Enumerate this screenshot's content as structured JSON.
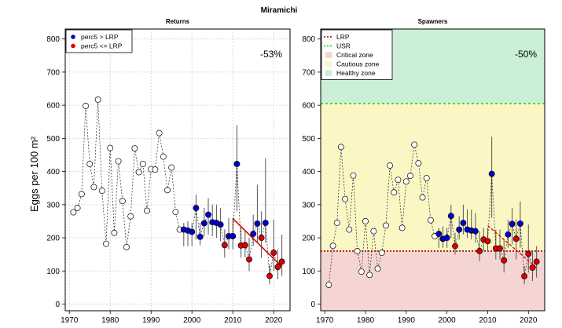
{
  "figure": {
    "title": "Miramichi",
    "ylabel": "Eggs per 100 m²"
  },
  "colors": {
    "above": "#0000cc",
    "below": "#dd0000",
    "open": "#ffffff",
    "critical": "#f5d5d2",
    "cautious": "#fbf7c4",
    "healthy": "#cbefd6",
    "lrp": "#990000",
    "usr": "#00cc00",
    "trend": "#dd0000",
    "errorbar": "#555555"
  },
  "chart_data": [
    {
      "type": "scatter",
      "title": "Returns",
      "xlim": [
        1969,
        2024
      ],
      "ylim": [
        -20,
        830
      ],
      "xticks": [
        1970,
        1980,
        1990,
        2000,
        2010,
        2020
      ],
      "yticks": [
        0,
        100,
        200,
        300,
        400,
        500,
        600,
        700,
        800
      ],
      "grid": true,
      "legend_position": "top-left",
      "legend": [
        {
          "label": "perc5 > LRP",
          "symbol": "blue-dot"
        },
        {
          "label": "perc5 <= LRP",
          "symbol": "red-dot"
        }
      ],
      "annotation": "-53%",
      "series": [
        {
          "x": [
            1971,
            1972,
            1973,
            1974,
            1975,
            1976,
            1977,
            1978,
            1979,
            1980,
            1981,
            1982,
            1983,
            1984,
            1985,
            1986,
            1987,
            1988,
            1989,
            1990,
            1991,
            1992,
            1993,
            1994,
            1995,
            1996,
            1997,
            1998,
            1999,
            2000,
            2001,
            2002,
            2003,
            2004,
            2005,
            2006,
            2007,
            2008,
            2009,
            2010,
            2011,
            2012,
            2013,
            2014,
            2015,
            2016,
            2017,
            2018,
            2019,
            2020,
            2021,
            2022
          ],
          "y": [
            277,
            290,
            332,
            598,
            423,
            353,
            617,
            342,
            182,
            471,
            215,
            431,
            311,
            172,
            265,
            470,
            398,
            423,
            282,
            407,
            406,
            516,
            445,
            344,
            412,
            278,
            225,
            225,
            222,
            218,
            290,
            203,
            244,
            270,
            247,
            245,
            240,
            178,
            205,
            205,
            423,
            177,
            178,
            135,
            212,
            243,
            200,
            245,
            85,
            155,
            112,
            128
          ],
          "status": [
            "open",
            "open",
            "open",
            "open",
            "open",
            "open",
            "open",
            "open",
            "open",
            "open",
            "open",
            "open",
            "open",
            "open",
            "open",
            "open",
            "open",
            "open",
            "open",
            "open",
            "open",
            "open",
            "open",
            "open",
            "open",
            "open",
            "open",
            "above",
            "above",
            "above",
            "above",
            "above",
            "above",
            "above",
            "above",
            "above",
            "above",
            "below",
            "above",
            "above",
            "above",
            "below",
            "below",
            "below",
            "above",
            "above",
            "below",
            "above",
            "below",
            "below",
            "below",
            "below"
          ],
          "err_low": [
            null,
            null,
            null,
            null,
            null,
            null,
            null,
            null,
            null,
            null,
            null,
            null,
            null,
            null,
            null,
            null,
            null,
            null,
            null,
            null,
            null,
            null,
            null,
            null,
            null,
            null,
            null,
            175,
            175,
            175,
            195,
            178,
            205,
            210,
            205,
            200,
            190,
            140,
            165,
            165,
            280,
            140,
            140,
            100,
            175,
            185,
            140,
            185,
            60,
            100,
            75,
            85
          ],
          "err_high": [
            null,
            null,
            null,
            null,
            null,
            null,
            null,
            null,
            null,
            null,
            null,
            null,
            null,
            null,
            null,
            null,
            null,
            null,
            null,
            null,
            null,
            null,
            null,
            null,
            null,
            null,
            null,
            245,
            250,
            245,
            330,
            245,
            290,
            320,
            300,
            300,
            290,
            225,
            260,
            260,
            540,
            230,
            220,
            200,
            270,
            360,
            280,
            440,
            120,
            255,
            165,
            210
          ]
        }
      ],
      "trend": {
        "x": [
          2010,
          2022
        ],
        "y": [
          258,
          113
        ]
      }
    },
    {
      "type": "scatter",
      "title": "Spawners",
      "xlim": [
        1969,
        2024
      ],
      "ylim": [
        -20,
        830
      ],
      "xticks": [
        1970,
        1980,
        1990,
        2000,
        2010,
        2020
      ],
      "yticks": [
        0,
        100,
        200,
        300,
        400,
        500,
        600,
        700,
        800
      ],
      "grid": false,
      "legend_position": "top-left",
      "legend": [
        {
          "label": "LRP",
          "symbol": "dotted-red-line"
        },
        {
          "label": "USR",
          "symbol": "dashed-green-line"
        },
        {
          "label": "Critical zone",
          "symbol": "critical-swatch"
        },
        {
          "label": "Cautious zone",
          "symbol": "cautious-swatch"
        },
        {
          "label": "Healthy zone",
          "symbol": "healthy-swatch"
        }
      ],
      "annotation": "-50%",
      "lrp": 160,
      "usr": 605,
      "series": [
        {
          "x": [
            1971,
            1972,
            1973,
            1974,
            1975,
            1976,
            1977,
            1978,
            1979,
            1980,
            1981,
            1982,
            1983,
            1984,
            1985,
            1986,
            1987,
            1988,
            1989,
            1990,
            1991,
            1992,
            1993,
            1994,
            1995,
            1996,
            1997,
            1998,
            1999,
            2000,
            2001,
            2002,
            2003,
            2004,
            2005,
            2006,
            2007,
            2008,
            2009,
            2010,
            2011,
            2012,
            2013,
            2014,
            2015,
            2016,
            2017,
            2018,
            2019,
            2020,
            2021,
            2022
          ],
          "y": [
            58,
            176,
            245,
            474,
            317,
            225,
            388,
            160,
            98,
            250,
            88,
            220,
            107,
            155,
            237,
            418,
            337,
            375,
            230,
            370,
            387,
            481,
            425,
            322,
            380,
            253,
            205,
            212,
            197,
            200,
            266,
            175,
            225,
            245,
            225,
            222,
            220,
            160,
            195,
            190,
            393,
            168,
            168,
            132,
            210,
            242,
            197,
            243,
            84,
            152,
            110,
            128
          ],
          "status": [
            "open",
            "open",
            "open",
            "open",
            "open",
            "open",
            "open",
            "open",
            "open",
            "open",
            "open",
            "open",
            "open",
            "open",
            "open",
            "open",
            "open",
            "open",
            "open",
            "open",
            "open",
            "open",
            "open",
            "open",
            "open",
            "open",
            "open",
            "above",
            "above",
            "above",
            "above",
            "below",
            "above",
            "above",
            "above",
            "above",
            "above",
            "below",
            "below",
            "below",
            "above",
            "below",
            "below",
            "below",
            "above",
            "above",
            "below",
            "above",
            "below",
            "below",
            "below",
            "below"
          ],
          "err_low": [
            null,
            null,
            null,
            null,
            null,
            null,
            null,
            null,
            null,
            null,
            null,
            null,
            null,
            null,
            null,
            null,
            null,
            null,
            null,
            null,
            null,
            null,
            null,
            null,
            null,
            null,
            null,
            170,
            170,
            170,
            200,
            150,
            195,
            210,
            200,
            195,
            185,
            130,
            160,
            160,
            260,
            135,
            135,
            95,
            170,
            180,
            135,
            170,
            60,
            95,
            70,
            80
          ],
          "err_high": [
            null,
            null,
            null,
            null,
            null,
            null,
            null,
            null,
            null,
            null,
            null,
            null,
            null,
            null,
            null,
            null,
            null,
            null,
            null,
            null,
            null,
            null,
            null,
            null,
            null,
            null,
            null,
            230,
            235,
            230,
            300,
            215,
            265,
            300,
            285,
            285,
            275,
            220,
            230,
            230,
            505,
            225,
            225,
            195,
            255,
            290,
            255,
            310,
            115,
            240,
            160,
            175
          ]
        }
      ],
      "trend": {
        "x": [
          2010,
          2022
        ],
        "y": [
          237,
          110
        ]
      }
    }
  ]
}
